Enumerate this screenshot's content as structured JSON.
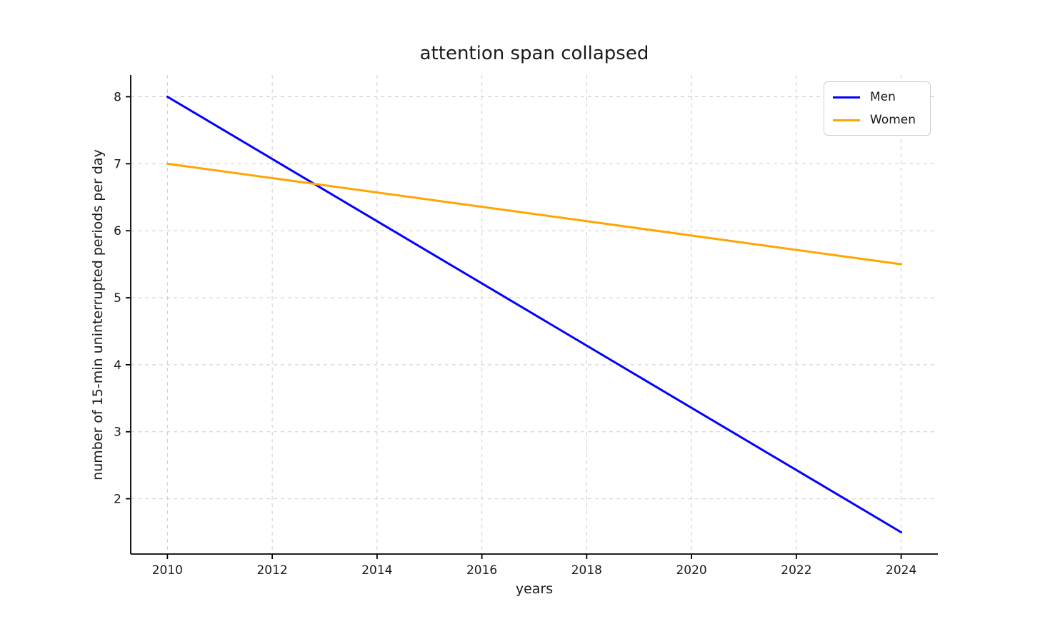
{
  "chart_data": {
    "type": "line",
    "title": "attention span collapsed",
    "xlabel": "years",
    "ylabel": "number of 15-min uninterrupted periods per day",
    "x": [
      2010,
      2024
    ],
    "series": [
      {
        "name": "Men",
        "color": "#0000ff",
        "values": [
          8.0,
          1.5
        ]
      },
      {
        "name": "Women",
        "color": "#ffa500",
        "values": [
          7.0,
          5.5
        ]
      }
    ],
    "xlim": [
      2009.3,
      2024.7
    ],
    "ylim": [
      1.175,
      8.325
    ],
    "xticks": [
      2010,
      2012,
      2014,
      2016,
      2018,
      2020,
      2022,
      2024
    ],
    "yticks": [
      2,
      3,
      4,
      5,
      6,
      7,
      8
    ],
    "grid": true,
    "grid_style": "dashed",
    "grid_color": "#cccccc",
    "spine_color": "#000000",
    "text_color": "#1a1a1a",
    "legend_position": "upper right"
  }
}
